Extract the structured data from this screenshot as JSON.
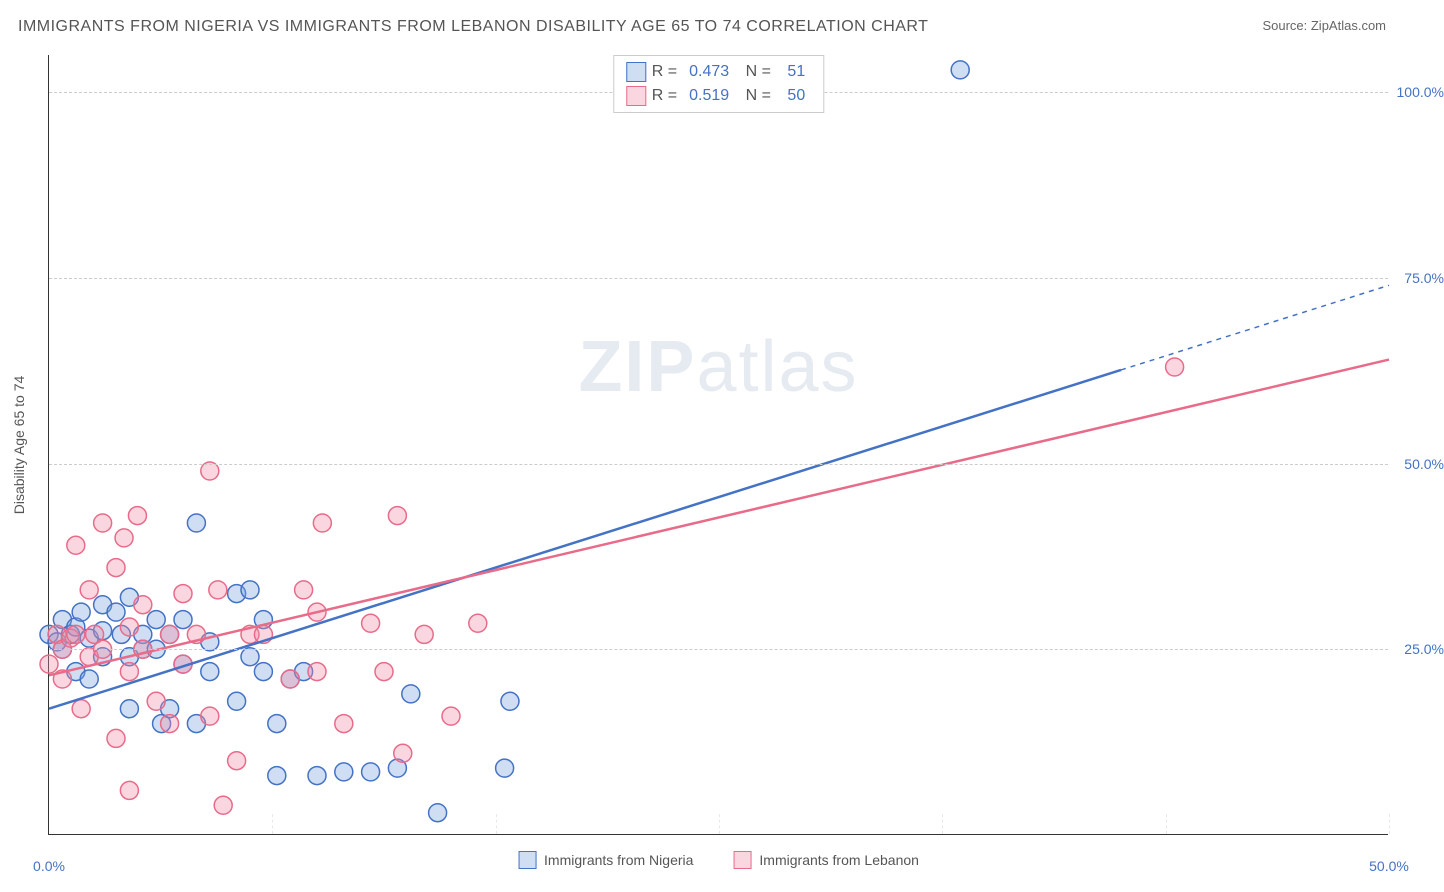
{
  "title": "IMMIGRANTS FROM NIGERIA VS IMMIGRANTS FROM LEBANON DISABILITY AGE 65 TO 74 CORRELATION CHART",
  "source": "Source: ZipAtlas.com",
  "ylabel": "Disability Age 65 to 74",
  "watermark_bold": "ZIP",
  "watermark_light": "atlas",
  "chart": {
    "type": "scatter",
    "xlim": [
      0,
      50
    ],
    "ylim": [
      0,
      105
    ],
    "xticks": [
      0,
      50
    ],
    "xtick_labels": [
      "0.0%",
      "50.0%"
    ],
    "yticks": [
      25,
      50,
      75,
      100
    ],
    "ytick_labels": [
      "25.0%",
      "50.0%",
      "75.0%",
      "100.0%"
    ],
    "x_gridlines": [
      0,
      8.33,
      16.67,
      25,
      33.33,
      41.67,
      50
    ],
    "grid_color": "#cccccc",
    "background_color": "#ffffff",
    "marker_radius": 9,
    "marker_stroke_width": 1.5,
    "line_width": 2.5,
    "series": [
      {
        "name": "Immigrants from Nigeria",
        "color_stroke": "#4472c4",
        "color_fill": "rgba(120,160,220,0.35)",
        "R": "0.473",
        "N": "51",
        "trend_start": [
          0,
          17
        ],
        "trend_end": [
          50,
          74
        ],
        "trend_solid_to_x": 40,
        "points": [
          [
            0,
            27
          ],
          [
            0.3,
            26
          ],
          [
            0.5,
            29
          ],
          [
            0.5,
            25
          ],
          [
            0.8,
            27
          ],
          [
            1,
            22
          ],
          [
            1,
            28
          ],
          [
            1.2,
            30
          ],
          [
            1.5,
            26.5
          ],
          [
            1.5,
            21
          ],
          [
            2,
            27.5
          ],
          [
            2,
            24
          ],
          [
            2,
            31
          ],
          [
            2.5,
            30
          ],
          [
            2.7,
            27
          ],
          [
            3,
            32
          ],
          [
            3,
            17
          ],
          [
            3,
            24
          ],
          [
            3.5,
            27
          ],
          [
            3.5,
            25
          ],
          [
            4,
            29
          ],
          [
            4,
            25
          ],
          [
            4.2,
            15
          ],
          [
            4.5,
            17
          ],
          [
            4.5,
            27
          ],
          [
            5,
            29
          ],
          [
            5,
            23
          ],
          [
            5.5,
            42
          ],
          [
            5.5,
            15
          ],
          [
            6,
            26
          ],
          [
            6,
            22
          ],
          [
            7,
            32.5
          ],
          [
            7,
            18
          ],
          [
            7.5,
            33
          ],
          [
            7.5,
            24
          ],
          [
            8,
            29
          ],
          [
            8,
            22
          ],
          [
            8.5,
            8
          ],
          [
            8.5,
            15
          ],
          [
            9,
            21
          ],
          [
            9.5,
            22
          ],
          [
            10,
            8
          ],
          [
            11,
            8.5
          ],
          [
            12,
            8.5
          ],
          [
            13,
            9
          ],
          [
            13.5,
            19
          ],
          [
            14.5,
            3
          ],
          [
            17,
            9
          ],
          [
            17.2,
            18
          ],
          [
            34,
            103
          ]
        ]
      },
      {
        "name": "Immigrants from Lebanon",
        "color_stroke": "#e86b8a",
        "color_fill": "rgba(240,140,165,0.35)",
        "R": "0.519",
        "N": "50",
        "trend_start": [
          0,
          21.5
        ],
        "trend_end": [
          50,
          64
        ],
        "trend_solid_to_x": 50,
        "points": [
          [
            0,
            23
          ],
          [
            0.3,
            27
          ],
          [
            0.5,
            25
          ],
          [
            0.5,
            21
          ],
          [
            0.8,
            26.5
          ],
          [
            1,
            27
          ],
          [
            1,
            39
          ],
          [
            1.2,
            17
          ],
          [
            1.5,
            33
          ],
          [
            1.5,
            24
          ],
          [
            1.7,
            27
          ],
          [
            2,
            42
          ],
          [
            2,
            25
          ],
          [
            2.5,
            36
          ],
          [
            2.5,
            13
          ],
          [
            2.8,
            40
          ],
          [
            3,
            28
          ],
          [
            3,
            22
          ],
          [
            3,
            6
          ],
          [
            3.3,
            43
          ],
          [
            3.5,
            31
          ],
          [
            3.5,
            25
          ],
          [
            4,
            18
          ],
          [
            4.5,
            27
          ],
          [
            4.5,
            15
          ],
          [
            5,
            32.5
          ],
          [
            5,
            23
          ],
          [
            5.5,
            27
          ],
          [
            6,
            16
          ],
          [
            6,
            49
          ],
          [
            6.3,
            33
          ],
          [
            6.5,
            4
          ],
          [
            7,
            10
          ],
          [
            7.5,
            27
          ],
          [
            8,
            27
          ],
          [
            9,
            21
          ],
          [
            9.5,
            33
          ],
          [
            10,
            22
          ],
          [
            10,
            30
          ],
          [
            10.2,
            42
          ],
          [
            11,
            15
          ],
          [
            12,
            28.5
          ],
          [
            12.5,
            22
          ],
          [
            13,
            43
          ],
          [
            13.2,
            11
          ],
          [
            14,
            27
          ],
          [
            15,
            16
          ],
          [
            16,
            28.5
          ],
          [
            42,
            63
          ]
        ]
      }
    ]
  },
  "bottom_legend": [
    {
      "label": "Immigrants from Nigeria",
      "stroke": "#4472c4",
      "fill": "rgba(120,160,220,0.35)"
    },
    {
      "label": "Immigrants from Lebanon",
      "stroke": "#e86b8a",
      "fill": "rgba(240,140,165,0.35)"
    }
  ]
}
